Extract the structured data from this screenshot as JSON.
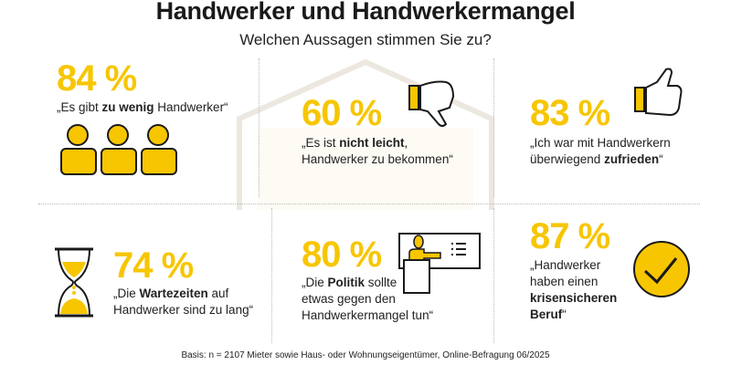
{
  "header": {
    "title": "Handwerker und Handwerkermangel",
    "subtitle": "Welchen Aussagen stimmen Sie zu?"
  },
  "colors": {
    "accent": "#f7c600",
    "text": "#1a1a1a"
  },
  "stats": [
    {
      "value": "84 %",
      "pre": "„Es gibt ",
      "bold": "zu wenig",
      "post": " Handwerker“",
      "icon": "people-icon"
    },
    {
      "value": "60 %",
      "pre": "„Es ist ",
      "bold": "nicht leicht",
      "post": ",\nHandwerker zu bekommen“",
      "icon": "thumbs-down-icon"
    },
    {
      "value": "83 %",
      "pre": "„Ich war mit Handwerkern\nüberwiegend ",
      "bold": "zufrieden",
      "post": "“",
      "icon": "thumbs-up-icon"
    },
    {
      "value": "74 %",
      "pre": "„Die ",
      "bold": "Wartezeiten",
      "post": " auf\nHandwerker sind zu lang“",
      "icon": "hourglass-icon"
    },
    {
      "value": "80 %",
      "pre": "„Die ",
      "bold": "Politik",
      "post": " sollte\netwas gegen den\nHandwerkermangel tun“",
      "icon": "presenter-icon"
    },
    {
      "value": "87 %",
      "pre": "„Handwerker\nhaben einen\n",
      "bold": "krisensicheren\nBeruf",
      "post": "“",
      "icon": "check-circle-icon"
    }
  ],
  "footer": "Basis: n = 2107 Mieter sowie Haus- oder Wohnungseigentümer, Online-Befragung 06/2025"
}
